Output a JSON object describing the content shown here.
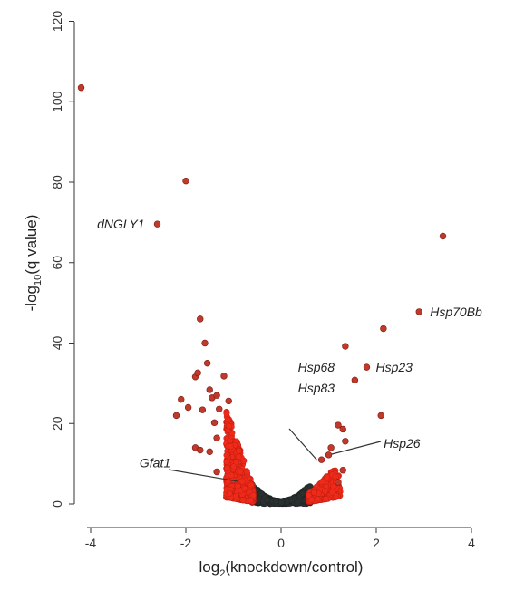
{
  "chart_data": {
    "type": "scatter",
    "title": "",
    "xlabel": {
      "prefix": "log",
      "sub": "2",
      "suffix": "(knockdown/control)"
    },
    "ylabel": {
      "prefix": "-log",
      "sub": "10",
      "suffix": "(q value)"
    },
    "xlim": [
      -4.3,
      4.3
    ],
    "ylim": [
      0,
      120
    ],
    "x_ticks": [
      "-4",
      "-2",
      "0",
      "2",
      "4"
    ],
    "y_ticks": [
      "0",
      "20",
      "40",
      "60",
      "80",
      "100",
      "120"
    ],
    "grid": false,
    "colors": {
      "labeled_outlier": "#c0392b",
      "significant": "#ef2a1a",
      "not_significant": "#2a302f"
    },
    "labeled_points": [
      {
        "x": -4.2,
        "y": 103.5
      },
      {
        "x": -2.0,
        "y": 80.3
      },
      {
        "x": -2.6,
        "y": 69.6
      },
      {
        "x": 3.4,
        "y": 66.6
      },
      {
        "x": 2.9,
        "y": 47.8
      },
      {
        "x": 2.15,
        "y": 43.6
      },
      {
        "x": -1.7,
        "y": 46.0
      },
      {
        "x": 1.35,
        "y": 39.2
      },
      {
        "x": 1.8,
        "y": 34.0
      },
      {
        "x": 1.55,
        "y": 30.8
      },
      {
        "x": 2.1,
        "y": 22.0
      },
      {
        "x": 1.2,
        "y": 19.6
      },
      {
        "x": 1.3,
        "y": 18.6
      },
      {
        "x": 0.85,
        "y": 11.0
      },
      {
        "x": 1.05,
        "y": 14.0
      },
      {
        "x": 1.0,
        "y": 12.2
      },
      {
        "x": 1.35,
        "y": 15.6
      },
      {
        "x": 1.3,
        "y": 8.4
      },
      {
        "x": 1.2,
        "y": 5.4
      },
      {
        "x": -1.6,
        "y": 40.0
      },
      {
        "x": -1.55,
        "y": 35.0
      },
      {
        "x": -1.8,
        "y": 31.6
      },
      {
        "x": -1.75,
        "y": 32.6
      },
      {
        "x": -1.2,
        "y": 31.8
      },
      {
        "x": -1.5,
        "y": 28.4
      },
      {
        "x": -1.45,
        "y": 26.4
      },
      {
        "x": -1.35,
        "y": 27.0
      },
      {
        "x": -2.1,
        "y": 26.0
      },
      {
        "x": -2.2,
        "y": 22.0
      },
      {
        "x": -1.95,
        "y": 24.0
      },
      {
        "x": -1.65,
        "y": 23.4
      },
      {
        "x": -1.3,
        "y": 23.6
      },
      {
        "x": -1.1,
        "y": 25.6
      },
      {
        "x": -1.4,
        "y": 20.2
      },
      {
        "x": -1.35,
        "y": 16.4
      },
      {
        "x": -1.5,
        "y": 13.0
      },
      {
        "x": -1.8,
        "y": 14.0
      },
      {
        "x": -1.7,
        "y": 13.4
      },
      {
        "x": -1.35,
        "y": 8.0
      }
    ],
    "annotations": [
      {
        "text": "dNGLY1",
        "x": -2.6,
        "y": 69.6,
        "anchor": "end",
        "leader": false
      },
      {
        "text": "Hsp70Bb",
        "x": 2.9,
        "y": 47.8,
        "anchor": "start",
        "leader": false
      },
      {
        "text": "Hsp23",
        "x": 1.8,
        "y": 34.0,
        "anchor": "start",
        "leader": false
      },
      {
        "text": "Hsp68",
        "x": 0.85,
        "y": 11.0,
        "anchor": "middle",
        "leader": true
      },
      {
        "text": "Hsp83",
        "x": 0.85,
        "y": 11.0,
        "anchor": "middle",
        "leader": false
      },
      {
        "text": "Hsp26",
        "x": 1.05,
        "y": 12.2,
        "anchor": "start",
        "leader": true
      },
      {
        "text": "Gfat1",
        "x": -0.95,
        "y": 6.0,
        "anchor": "end",
        "leader": true
      }
    ],
    "cloud": {
      "description_omitted": true,
      "ns_threshold_abs_log2": 0.58,
      "left_arm_x": [
        -1.15,
        -0.58
      ],
      "right_arm_x": [
        0.58,
        1.25
      ]
    }
  }
}
